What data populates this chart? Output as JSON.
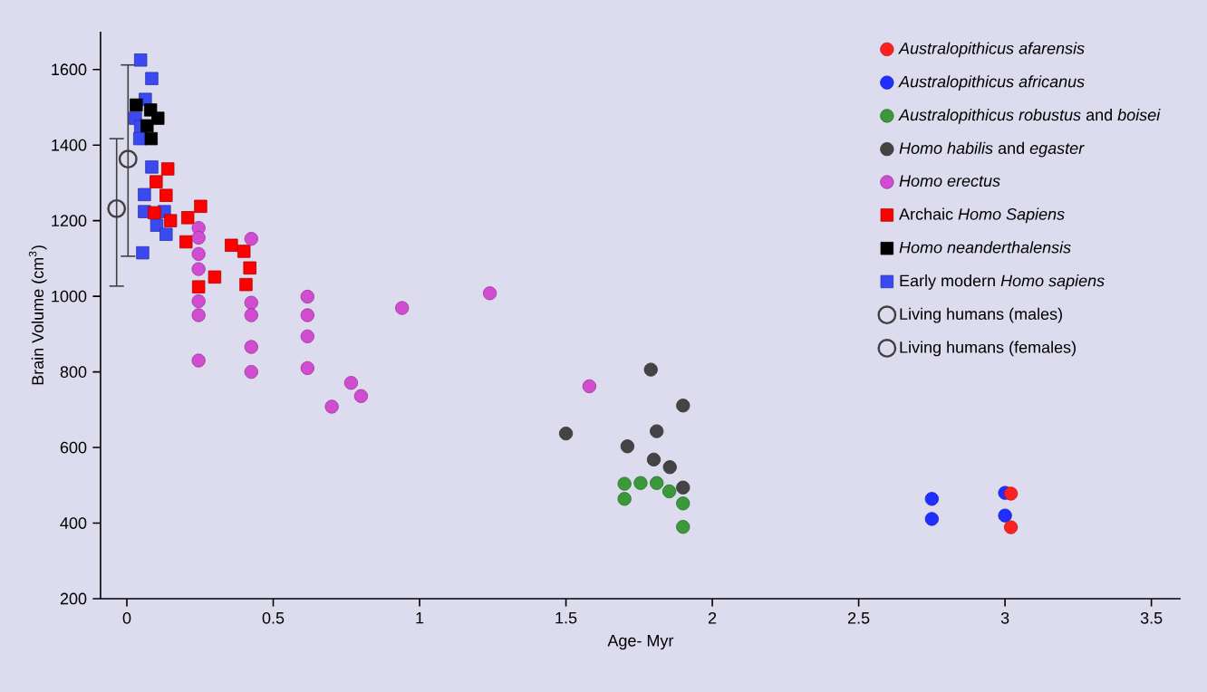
{
  "chart_data": {
    "type": "scatter",
    "xlabel": "Age- Myr",
    "ylabel": "Brain Volume (cm$^{3}$)",
    "xlim": [
      -0.09,
      3.6
    ],
    "ylim": [
      200,
      1700
    ],
    "xticks": [
      0,
      0.5,
      1,
      1.5,
      2,
      2.5,
      3,
      3.5
    ],
    "yticks": [
      200,
      400,
      600,
      800,
      1000,
      1200,
      1400,
      1600
    ],
    "legend": "top right",
    "grid": false,
    "series": [
      {
        "name": "*Australopithicus afarensis*",
        "color": "#ff2020",
        "marker": "circle",
        "x": [
          3.02,
          3.02
        ],
        "values": [
          478,
          389
        ]
      },
      {
        "name": "*Australopithicus africanus*",
        "color": "#1f2fff",
        "marker": "circle",
        "x": [
          2.75,
          2.75,
          3.0,
          3.0
        ],
        "values": [
          464,
          411,
          480,
          420
        ]
      },
      {
        "name": "*Australopithicus robustus* and *boisei*",
        "color": "#3a9a3a",
        "marker": "circle",
        "x": [
          1.7,
          1.755,
          1.81,
          1.853,
          1.9,
          1.7,
          1.9
        ],
        "values": [
          504,
          506,
          506,
          484,
          452,
          464,
          390
        ]
      },
      {
        "name": "*Homo habilis* and *egaster*",
        "color": "#444444",
        "marker": "circle",
        "x": [
          1.79,
          1.9,
          1.5,
          1.81,
          1.71,
          1.8,
          1.855,
          1.9
        ],
        "values": [
          806,
          711,
          637,
          643,
          603,
          568,
          548,
          494
        ]
      },
      {
        "name": "*Homo erectus*",
        "color": "#d24cd2",
        "marker": "circle",
        "x": [
          0.245,
          0.245,
          0.245,
          0.245,
          0.245,
          0.245,
          0.245,
          0.425,
          0.425,
          0.425,
          0.425,
          0.425,
          0.617,
          0.617,
          0.617,
          0.617,
          0.94,
          1.24,
          1.58,
          0.766,
          0.8,
          0.7
        ],
        "values": [
          1181,
          1155,
          1112,
          1072,
          987,
          950,
          830,
          1152,
          983,
          950,
          866,
          800,
          999,
          950,
          894,
          810,
          969,
          1008,
          762,
          771,
          736,
          708
        ]
      },
      {
        "name": "Archaic *Homo Sapiens*",
        "color": "#ff0000",
        "marker": "square",
        "x": [
          0.14,
          0.1,
          0.134,
          0.252,
          0.208,
          0.149,
          0.094,
          0.202,
          0.357,
          0.4,
          0.42,
          0.407,
          0.3,
          0.245
        ],
        "values": [
          1337,
          1303,
          1267,
          1238,
          1208,
          1200,
          1221,
          1144,
          1135,
          1119,
          1075,
          1031,
          1051,
          1025
        ]
      },
      {
        "name": "*Homo neanderthalensis*",
        "color": "#000000",
        "marker": "square",
        "x": [
          0.032,
          0.081,
          0.106,
          0.069,
          0.083
        ],
        "values": [
          1506,
          1493,
          1471,
          1451,
          1417
        ]
      },
      {
        "name": "Early modern *Homo sapiens*",
        "color": "#3a4af0",
        "marker": "square",
        "x": [
          0.047,
          0.085,
          0.063,
          0.029,
          0.047,
          0.044,
          0.085,
          0.06,
          0.06,
          0.128,
          0.102,
          0.134,
          0.054
        ],
        "values": [
          1625,
          1576,
          1521,
          1471,
          1449,
          1417,
          1342,
          1269,
          1224,
          1224,
          1188,
          1164,
          1115
        ]
      },
      {
        "name": "Living humans (males)",
        "color": "#404040",
        "marker": "circle",
        "x": [
          0.004
        ],
        "values": [
          1363
        ],
        "errors": [
          [
            1106,
            1612
          ]
        ]
      },
      {
        "name": "Living humans (females)",
        "color": "#404040",
        "marker": "circle",
        "x": [
          -0.035
        ],
        "values": [
          1232
        ],
        "errors": [
          [
            1027,
            1417
          ]
        ]
      }
    ]
  }
}
